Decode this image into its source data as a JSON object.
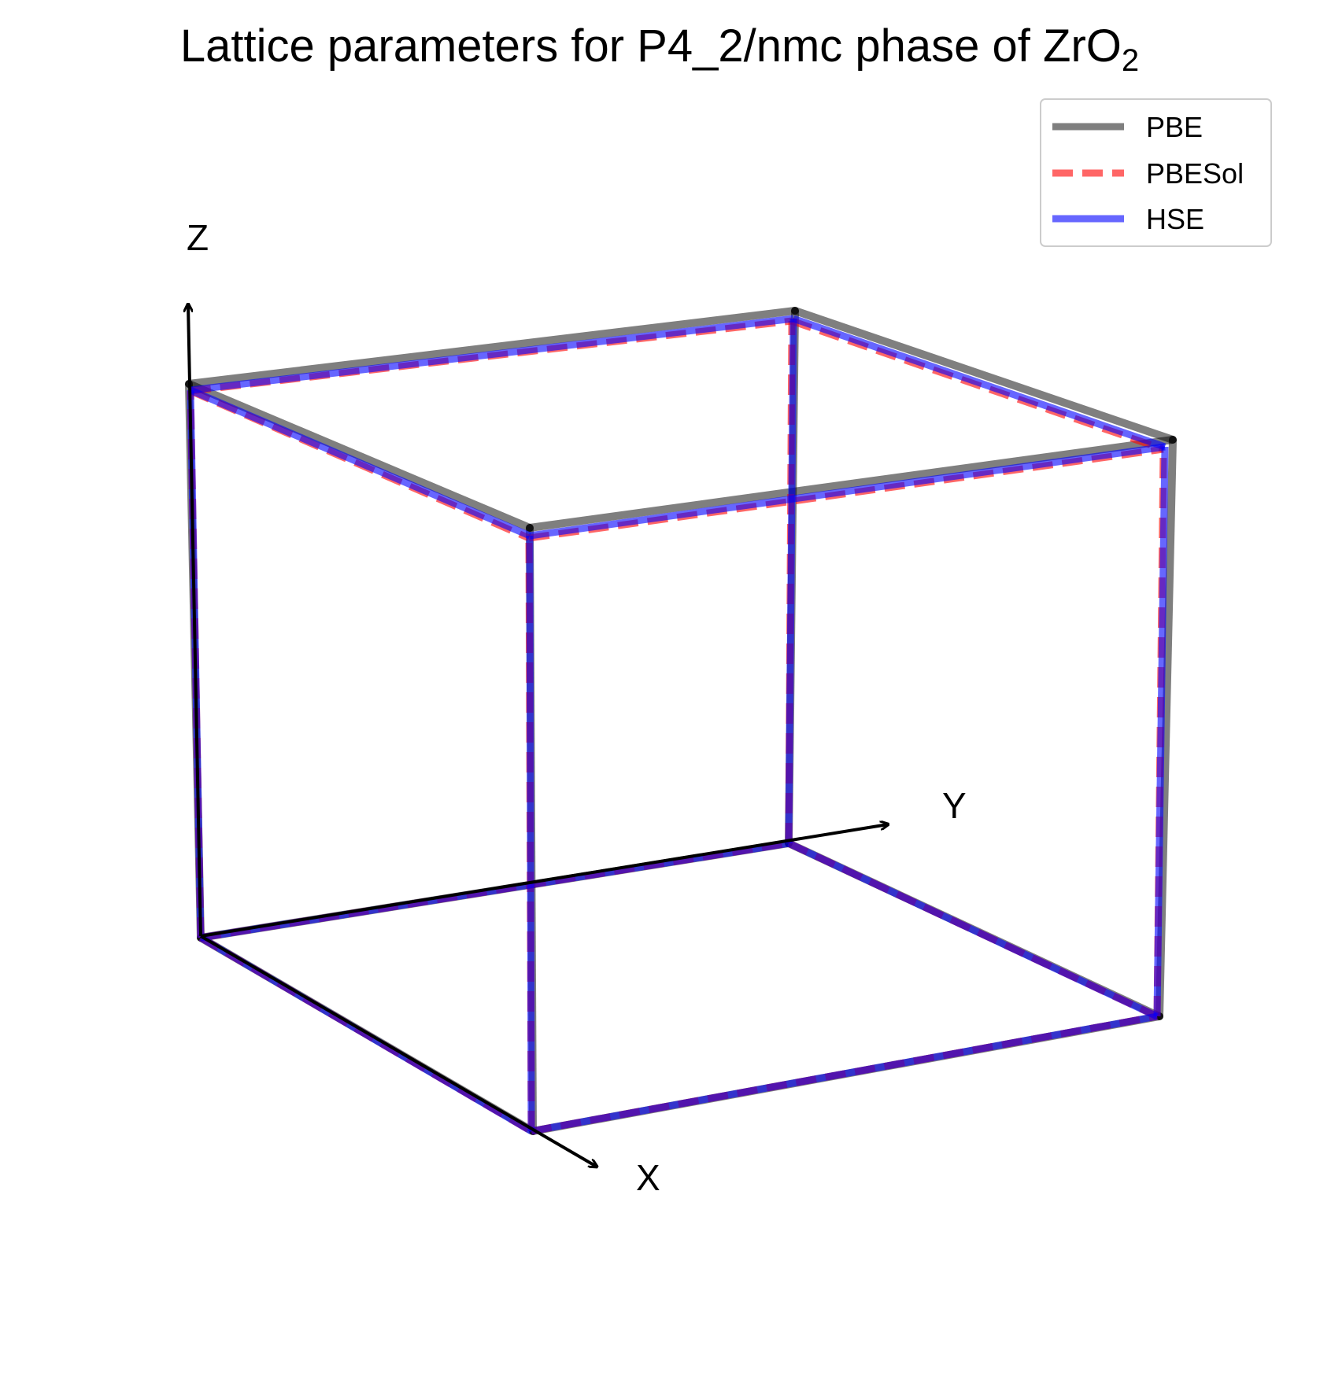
{
  "title": {
    "main": "Lattice parameters for P4_2/nmc phase of ZrO",
    "subscript": "2"
  },
  "axes": {
    "x_label": "X",
    "y_label": "Y",
    "z_label": "Z"
  },
  "legend": {
    "placement": "top-right",
    "entries": [
      {
        "label": "PBE",
        "color": "#000000",
        "style": "solid"
      },
      {
        "label": "PBESol",
        "color": "#ff0000",
        "style": "dashed"
      },
      {
        "label": "HSE",
        "color": "#0000ff",
        "style": "solid"
      }
    ]
  },
  "chart_data": {
    "type": "3d-wireframe",
    "series": [
      {
        "name": "PBE",
        "color": "#000000",
        "style": "solid"
      },
      {
        "name": "PBESol",
        "color": "#ff0000",
        "style": "dashed"
      },
      {
        "name": "HSE",
        "color": "#0000ff",
        "style": "solid"
      }
    ]
  }
}
